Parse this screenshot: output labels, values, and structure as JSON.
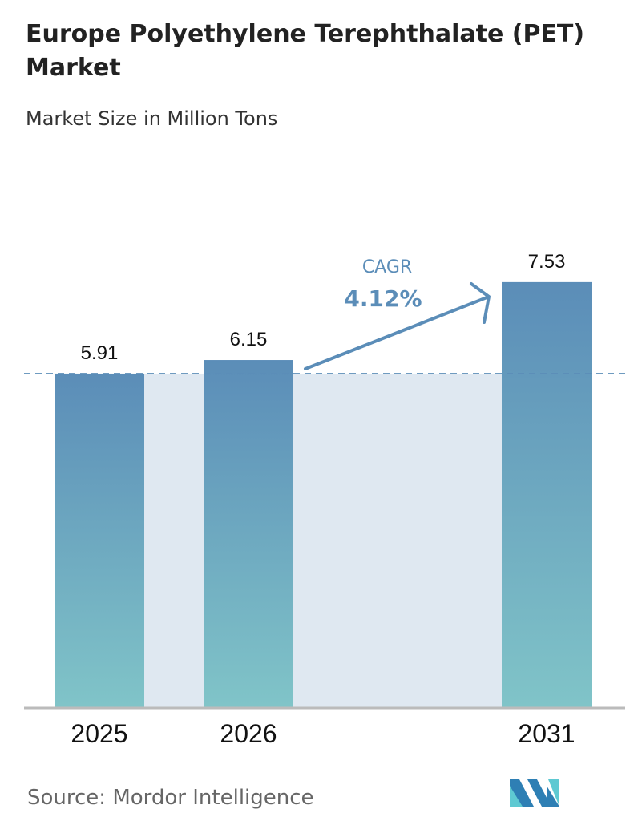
{
  "chart_data": {
    "type": "bar",
    "title": "Europe Polyethylene Terephthalate (PET) Market",
    "subtitle": "Market Size in Million Tons",
    "categories": [
      "2025",
      "2026",
      "2031"
    ],
    "values": [
      5.91,
      6.15,
      7.53
    ],
    "data_labels": [
      "5.91",
      "6.15",
      "7.53"
    ],
    "annotation": {
      "label": "CAGR",
      "value": "4.12%"
    },
    "grid": false,
    "colors": {
      "bar_top": "#5b8db8",
      "bar_bottom": "#80c4c8",
      "shade": "#dfe8f1",
      "accent": "#5b8db8"
    }
  },
  "source": "Source:  Mordor Intelligence",
  "logo_text": "MI"
}
